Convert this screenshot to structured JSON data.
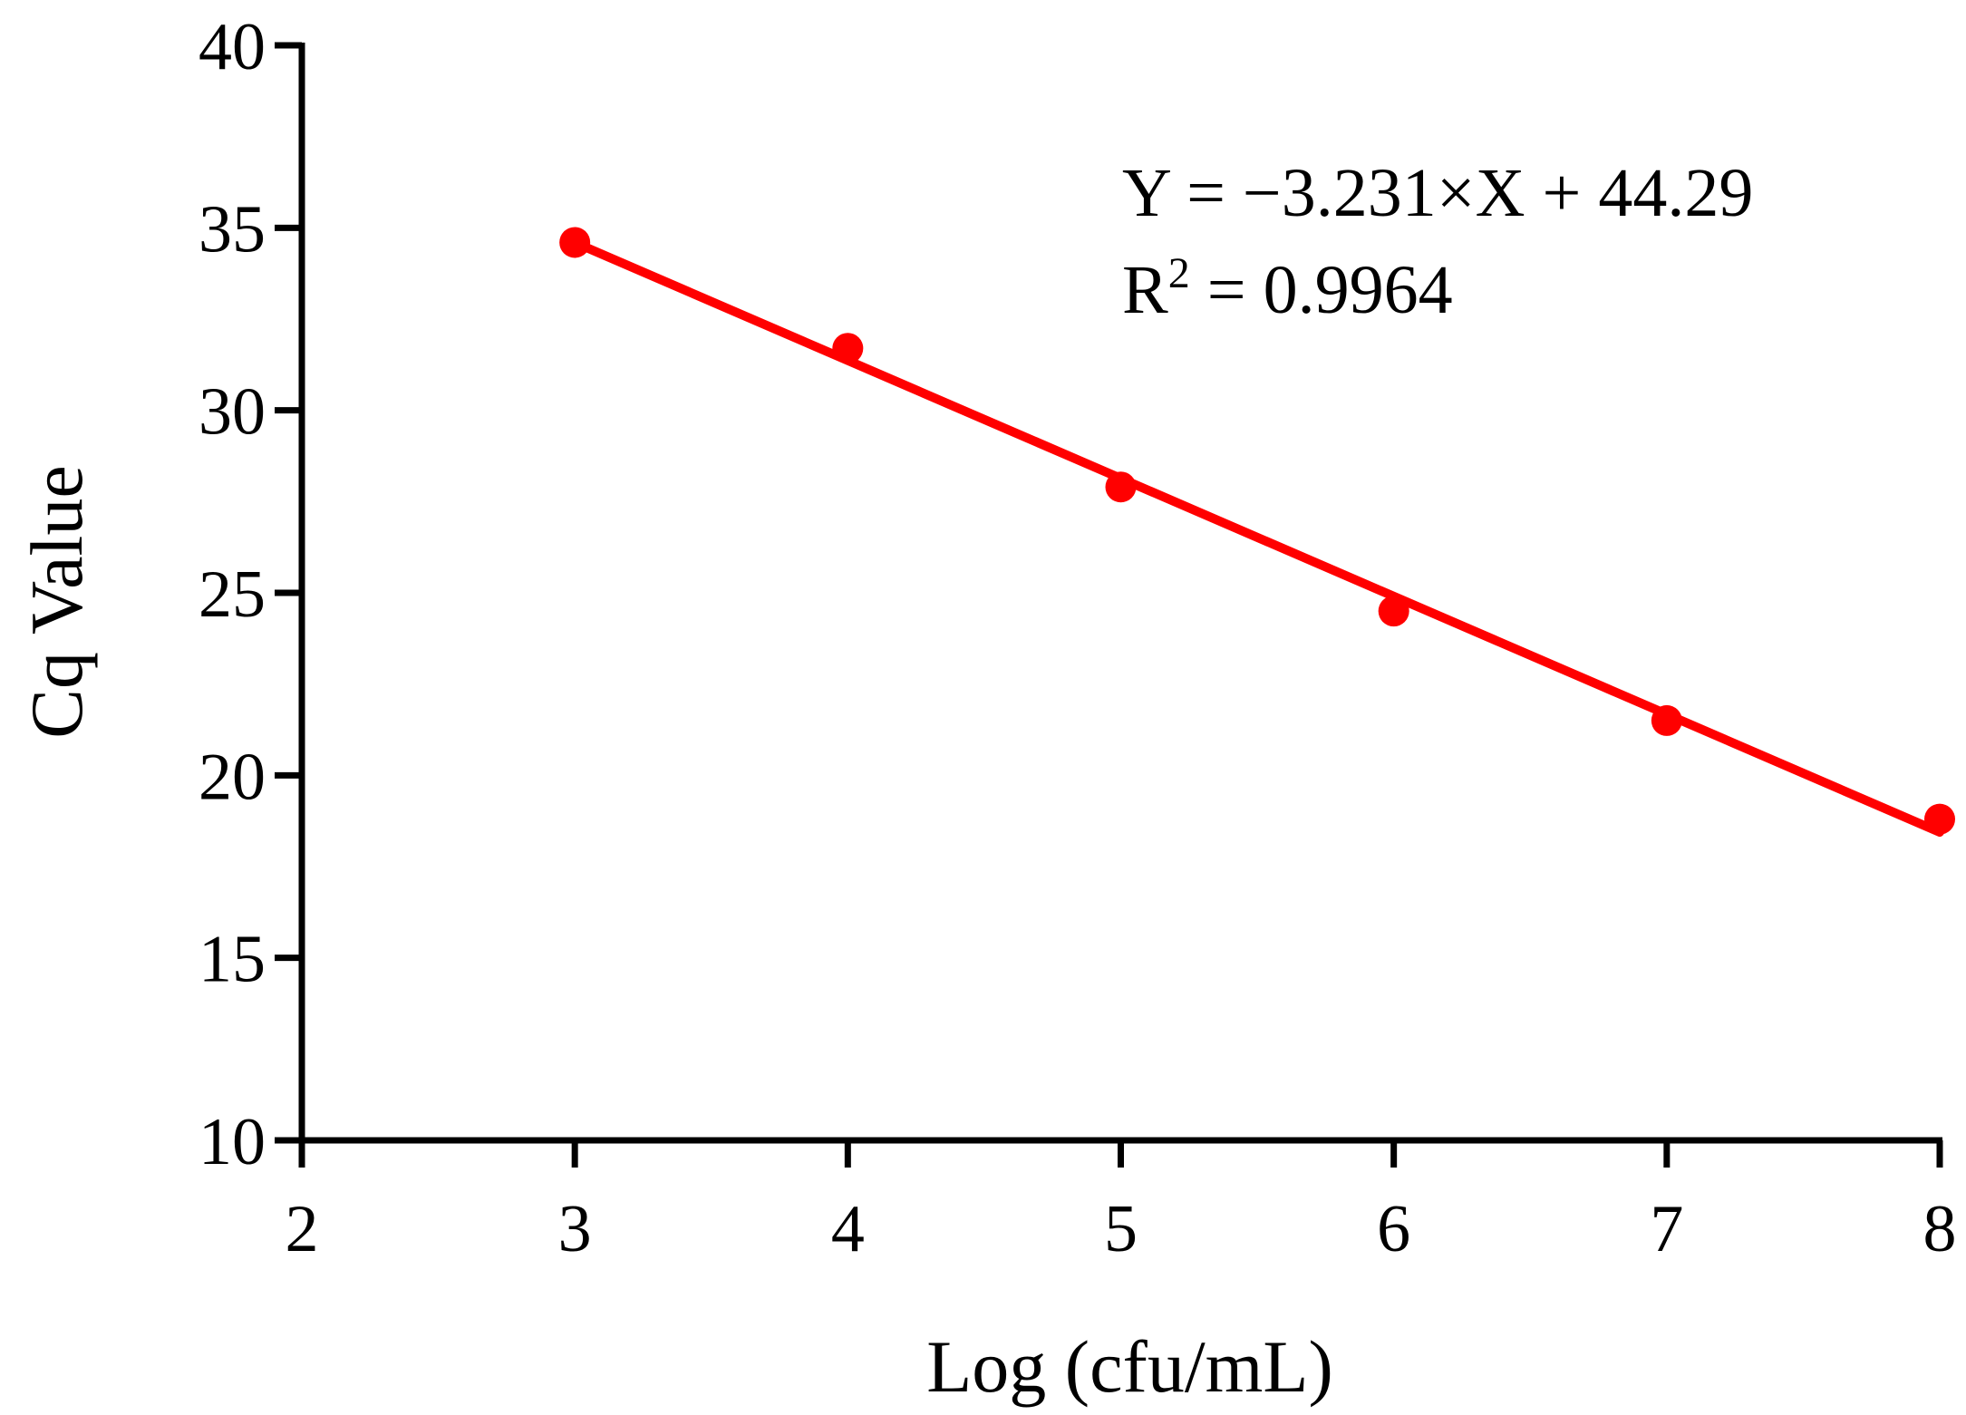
{
  "chart_data": {
    "type": "scatter",
    "title": "",
    "xlabel": "Log (cfu/mL)",
    "ylabel": "Cq Value",
    "xlim": [
      2,
      8
    ],
    "ylim": [
      10,
      40
    ],
    "x_ticks": [
      2,
      3,
      4,
      5,
      6,
      7,
      8
    ],
    "y_ticks": [
      10,
      15,
      20,
      25,
      30,
      35,
      40
    ],
    "x_tick_labels": [
      "2",
      "3",
      "4",
      "5",
      "6",
      "7",
      "8"
    ],
    "y_tick_labels": [
      "10",
      "15",
      "20",
      "25",
      "30",
      "35",
      "40"
    ],
    "grid": false,
    "legend": "none",
    "series": [
      {
        "x": [
          3,
          4,
          5,
          6,
          7,
          8
        ],
        "y": [
          34.6,
          31.7,
          27.9,
          24.5,
          21.5,
          18.8
        ],
        "color": "#ff0000"
      }
    ],
    "fit_line": {
      "slope": -3.231,
      "intercept": 44.29,
      "x_range": [
        3,
        8
      ],
      "color": "#ff0000"
    },
    "annotations": {
      "equation": "Y = −3.231×X + 44.29",
      "r2_prefix": "R",
      "r2_superscript": "2",
      "r2_value": " = 0.9964"
    }
  }
}
